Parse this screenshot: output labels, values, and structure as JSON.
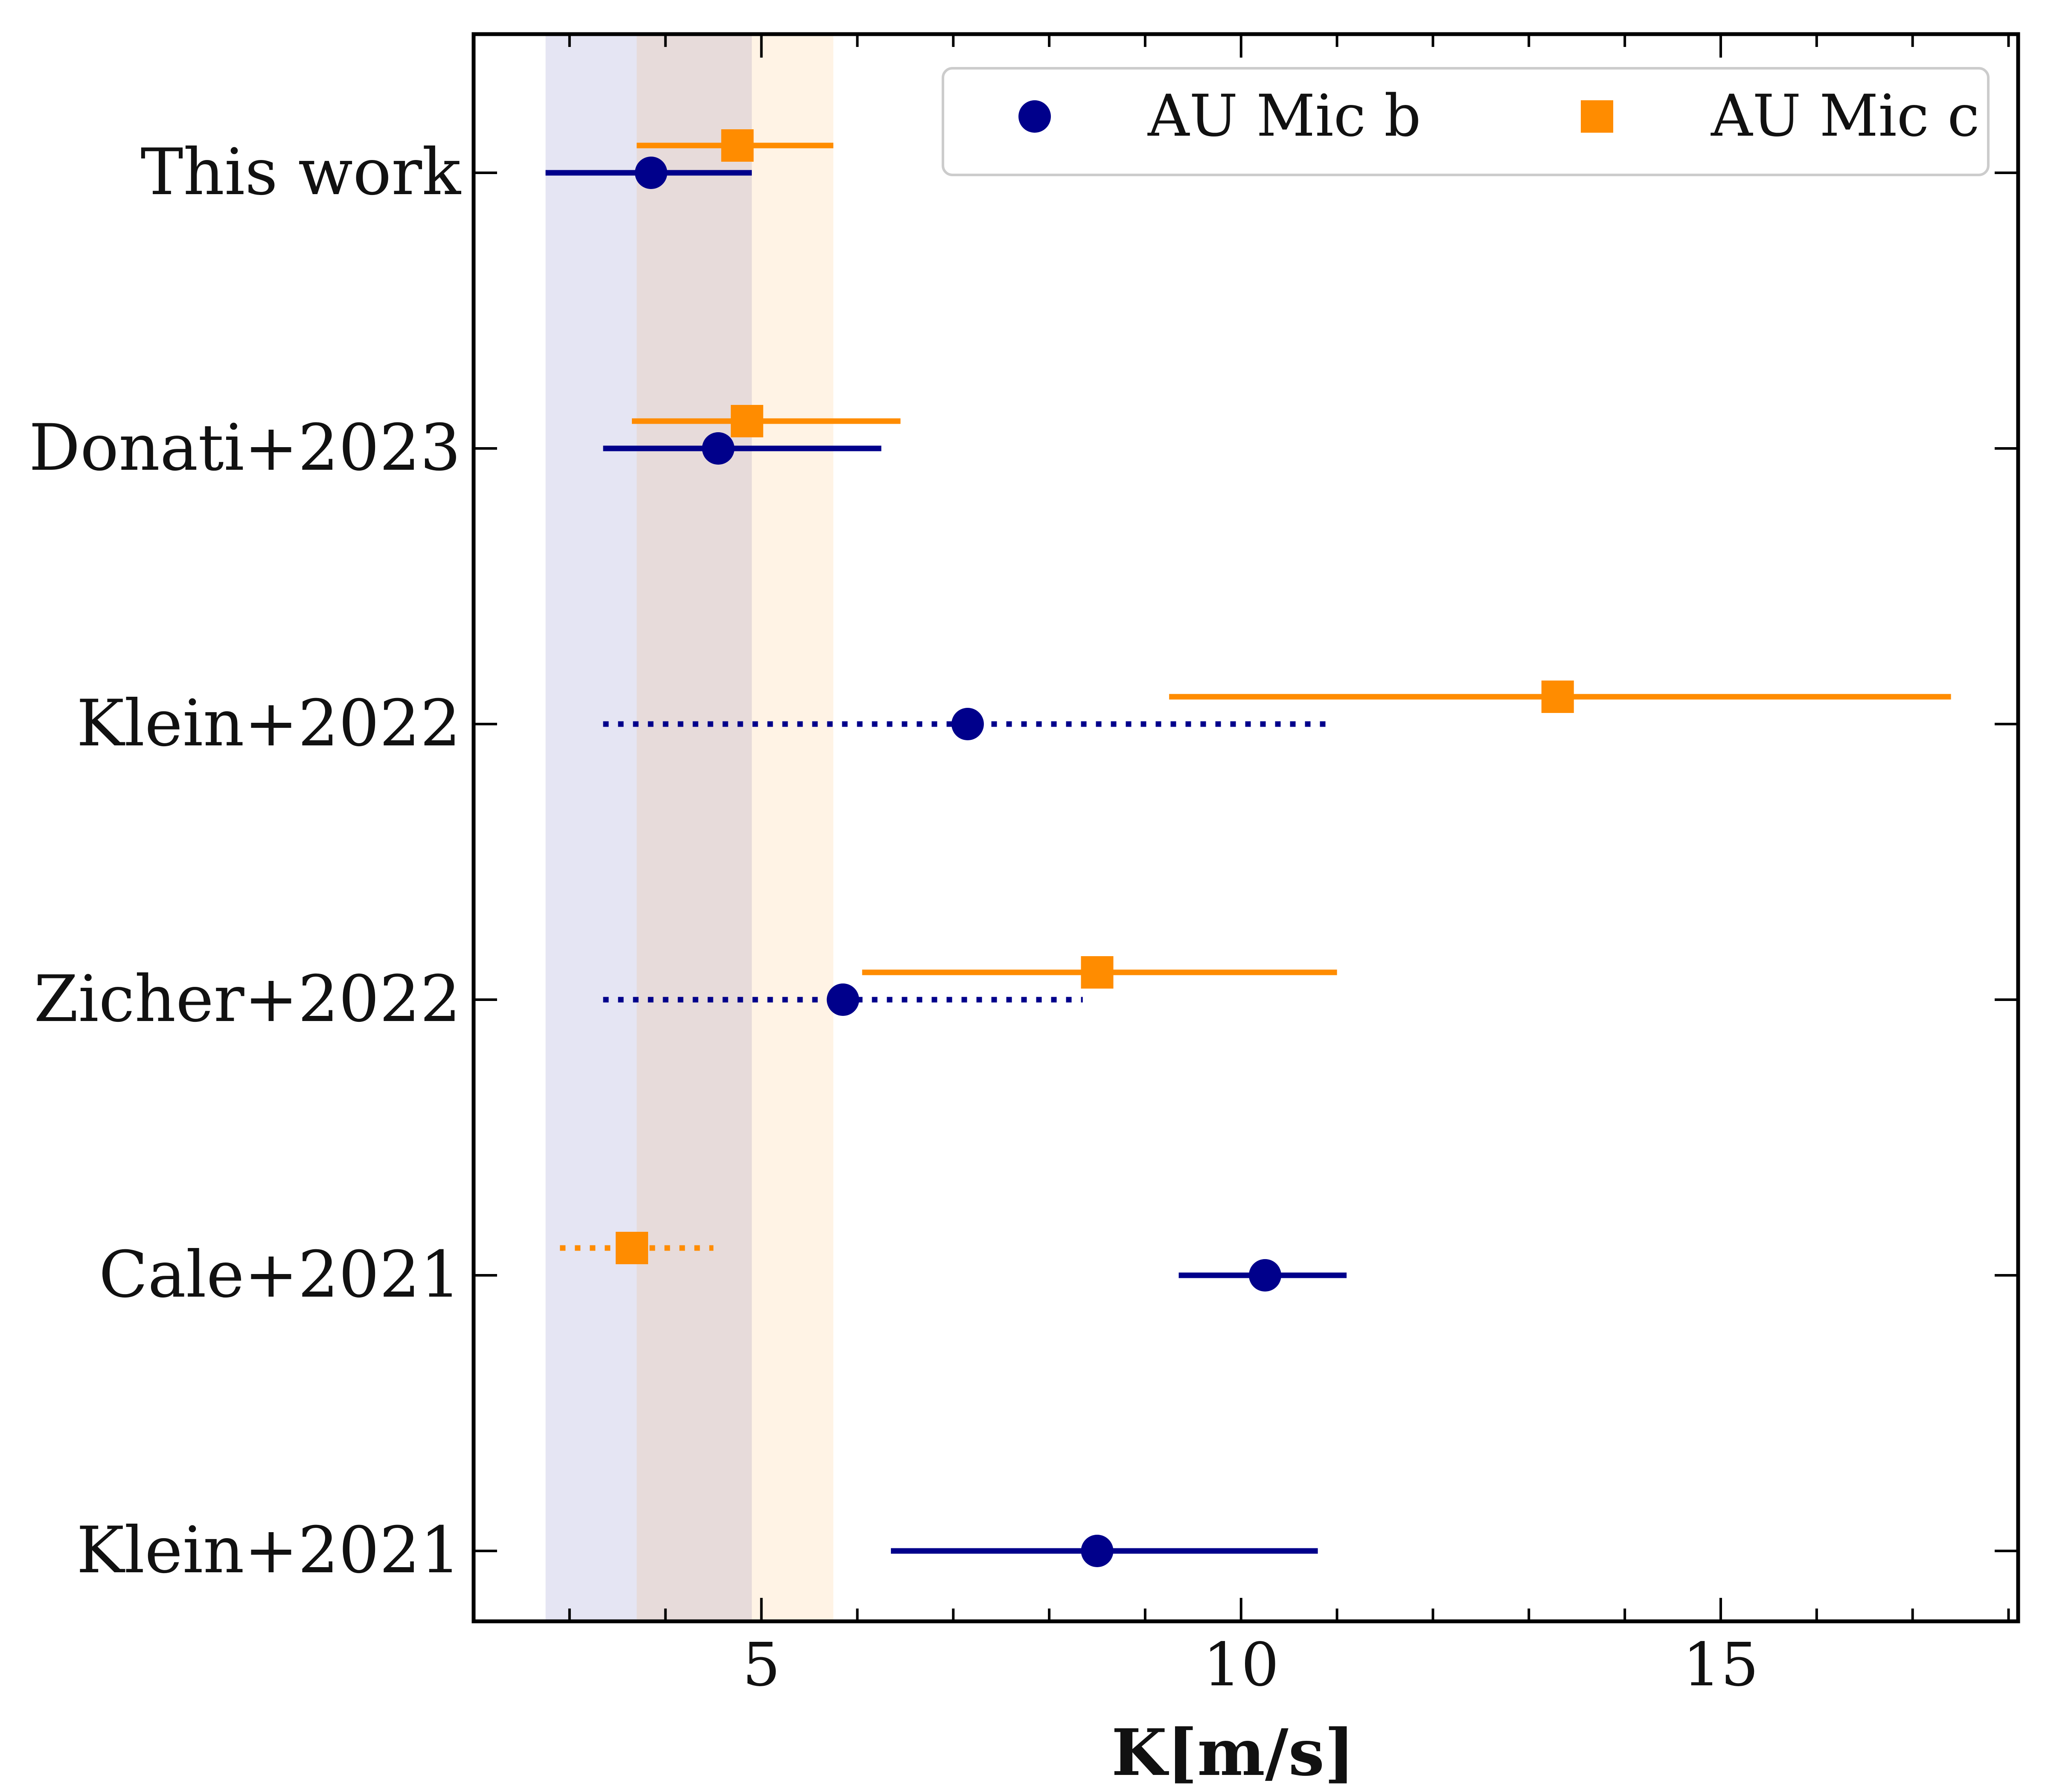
{
  "chart_data": {
    "type": "scatter",
    "title": "",
    "xlabel": "K[m/s]",
    "ylabel": "",
    "xlim": [
      2.0,
      18.1
    ],
    "xticks": [
      5,
      10,
      15
    ],
    "xtick_labels": [
      "5",
      "10",
      "15"
    ],
    "grid": false,
    "legend_position": "top-right",
    "categories": [
      "This work",
      "Donati+2023",
      "Klein+2022",
      "Zicher+2022",
      "Cale+2021",
      "Klein+2021"
    ],
    "shaded_bands": [
      {
        "series": "AU Mic b",
        "lo": 2.75,
        "hi": 4.9,
        "color": "#00008b"
      },
      {
        "series": "AU Mic c",
        "lo": 3.7,
        "hi": 5.75,
        "color": "#ff8c00"
      }
    ],
    "series": [
      {
        "name": "AU Mic b",
        "marker": "circle",
        "color": "#00008b",
        "points": [
          {
            "label": "This work",
            "value": 3.85,
            "lo": 2.75,
            "hi": 4.9,
            "style": "solid"
          },
          {
            "label": "Donati+2023",
            "value": 4.55,
            "lo": 3.35,
            "hi": 6.25,
            "style": "solid"
          },
          {
            "label": "Klein+2022",
            "value": 7.15,
            "lo": 3.35,
            "hi": 10.95,
            "style": "dotted"
          },
          {
            "label": "Zicher+2022",
            "value": 5.85,
            "lo": 3.35,
            "hi": 8.35,
            "style": "dotted"
          },
          {
            "label": "Cale+2021",
            "value": 10.25,
            "lo": 9.35,
            "hi": 11.1,
            "style": "solid"
          },
          {
            "label": "Klein+2021",
            "value": 8.5,
            "lo": 6.35,
            "hi": 10.8,
            "style": "solid"
          }
        ]
      },
      {
        "name": "AU Mic c",
        "marker": "square",
        "color": "#ff8c00",
        "points": [
          {
            "label": "This work",
            "value": 4.75,
            "lo": 3.7,
            "hi": 5.75,
            "style": "solid"
          },
          {
            "label": "Donati+2023",
            "value": 4.85,
            "lo": 3.65,
            "hi": 6.45,
            "style": "solid"
          },
          {
            "label": "Klein+2022",
            "value": 13.3,
            "lo": 9.25,
            "hi": 17.4,
            "style": "solid"
          },
          {
            "label": "Zicher+2022",
            "value": 8.5,
            "lo": 6.05,
            "hi": 11.0,
            "style": "solid"
          },
          {
            "label": "Cale+2021",
            "value": 3.65,
            "lo": 2.9,
            "hi": 4.5,
            "style": "dotted"
          }
        ]
      }
    ]
  }
}
